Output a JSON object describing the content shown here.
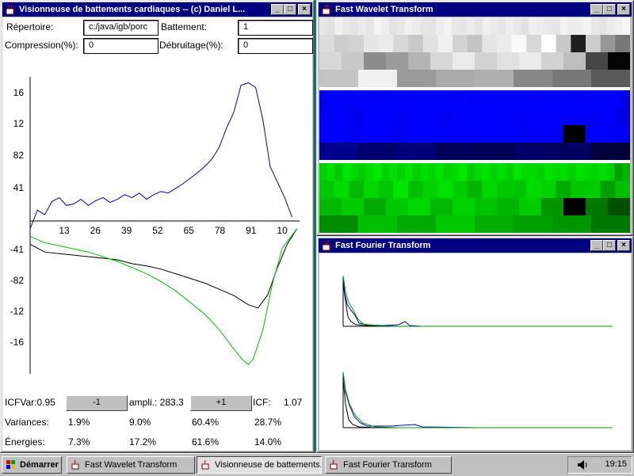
{
  "viewer": {
    "title": "Visionneuse de battements cardiaques -- (c) Daniel L...",
    "repertoire_label": "Répertoire:",
    "repertoire_value": "c:/java/igb/porc",
    "battement_label": "Battement:",
    "battement_value": "1",
    "compression_label": "Compression(%):",
    "compression_value": "0",
    "debruitage_label": "Débruitage(%):",
    "debruitage_value": "0",
    "icf_var_label": "ICFVar:0.95",
    "minus_button": "-1",
    "ampli_label": "ampli.: 283.3",
    "plus_button": "+1",
    "icf_label": "ICF:",
    "icf_value": "1.07",
    "variances_label": "Variances:",
    "variances": [
      "1.9%",
      "9.0%",
      "60.4%",
      "28.7%"
    ],
    "energies_label": "Énergies:",
    "energies": [
      "7.3%",
      "17.2%",
      "61.6%",
      "14.0%"
    ]
  },
  "chart_data": {
    "type": "line",
    "x_ticks": [
      "13",
      "26",
      "39",
      "52",
      "65",
      "78",
      "91",
      "10"
    ],
    "y_ticks": [
      "16",
      "12",
      "82",
      "41",
      "-41",
      "-82",
      "-12",
      "-16"
    ],
    "series": [
      {
        "color": "#0000c0",
        "x": [
          0,
          3,
          6,
          9,
          12,
          15,
          18,
          21,
          24,
          27,
          30,
          33,
          36,
          39,
          42,
          45,
          48,
          51,
          54,
          57,
          60,
          63,
          66,
          69,
          72,
          75,
          78,
          81,
          84,
          87,
          90,
          93,
          96,
          99,
          102,
          105,
          108
        ],
        "y": [
          -10,
          14,
          8,
          25,
          30,
          20,
          22,
          28,
          20,
          26,
          30,
          24,
          28,
          34,
          30,
          36,
          28,
          34,
          38,
          36,
          42,
          48,
          55,
          62,
          70,
          80,
          95,
          120,
          140,
          175,
          178,
          172,
          130,
          70,
          50,
          30,
          5
        ]
      },
      {
        "color": "#000000",
        "x": [
          0,
          6,
          12,
          18,
          24,
          30,
          36,
          42,
          48,
          54,
          60,
          66,
          72,
          78,
          84,
          90,
          94,
          98,
          102,
          106,
          110
        ],
        "y": [
          -30,
          -40,
          -42,
          -44,
          -46,
          -48,
          -50,
          -55,
          -58,
          -62,
          -68,
          -74,
          -80,
          -88,
          -96,
          -108,
          -112,
          -95,
          -60,
          -30,
          -10
        ]
      },
      {
        "color": "#00c000",
        "x": [
          0,
          6,
          12,
          18,
          24,
          30,
          36,
          42,
          48,
          54,
          60,
          66,
          72,
          78,
          84,
          88,
          90,
          92,
          96,
          100,
          104,
          110
        ],
        "y": [
          -20,
          -28,
          -32,
          -36,
          -40,
          -46,
          -52,
          -60,
          -68,
          -78,
          -90,
          -105,
          -120,
          -140,
          -165,
          -180,
          -185,
          -178,
          -140,
          -80,
          -35,
          -10
        ]
      }
    ]
  },
  "wavelet": {
    "title": "Fast Wavelet Transform",
    "gray_rows": [
      [
        230,
        225,
        240,
        232,
        228,
        236,
        230,
        245,
        238,
        226,
        232,
        240,
        236,
        230,
        228,
        238,
        244,
        232,
        230,
        236,
        228,
        240,
        234,
        230,
        238,
        232,
        226,
        240,
        236,
        232,
        230,
        242,
        236,
        238,
        244,
        232,
        228,
        236,
        240,
        246
      ],
      [
        220,
        205,
        210,
        230,
        235,
        215,
        200,
        225,
        240,
        210,
        195,
        230,
        236,
        250,
        215,
        255,
        200,
        30,
        205,
        150,
        120
      ],
      [
        215,
        200,
        140,
        155,
        180,
        215,
        235,
        210,
        225,
        235,
        210,
        190,
        70,
        5
      ],
      [
        195,
        240,
        155,
        170,
        175,
        135,
        120,
        90
      ]
    ],
    "blue_rows": [
      [
        40,
        60,
        70,
        50,
        65,
        58,
        72,
        48,
        62,
        55,
        68,
        52,
        60,
        70,
        58,
        64,
        52,
        72,
        60,
        48,
        66,
        58,
        62,
        54,
        70,
        56,
        60,
        66,
        52,
        72,
        58,
        64,
        60,
        50,
        68,
        56,
        62,
        70,
        60,
        30
      ],
      [
        45,
        70,
        40,
        58,
        65,
        50,
        72,
        62,
        48,
        58,
        70,
        55,
        62,
        45,
        60,
        68,
        55,
        60,
        50,
        75,
        30
      ],
      [
        60,
        50,
        72,
        44,
        56,
        66,
        52,
        60,
        70,
        48,
        52,
        0,
        75,
        45
      ],
      [
        140,
        110,
        120,
        90,
        85,
        100,
        95,
        60
      ]
    ],
    "green_rows": [
      [
        210,
        225,
        200,
        230,
        215,
        205,
        220,
        235,
        210,
        225,
        212,
        230,
        208,
        222,
        215,
        228,
        210,
        220,
        232,
        205,
        218,
        226,
        212,
        224,
        208,
        230,
        216,
        220,
        210,
        228,
        214,
        222,
        206,
        226,
        218,
        212,
        224,
        208,
        160,
        180
      ],
      [
        200,
        220,
        185,
        215,
        200,
        230,
        190,
        210,
        225,
        205,
        180,
        215,
        200,
        195,
        220,
        210,
        170,
        200,
        205,
        160,
        190
      ],
      [
        185,
        205,
        170,
        200,
        215,
        185,
        210,
        195,
        180,
        205,
        150,
        0,
        120,
        80
      ],
      [
        140,
        190,
        170,
        200,
        175,
        160,
        150,
        120
      ]
    ]
  },
  "fft": {
    "title": "Fast Fourier Transform"
  },
  "taskbar": {
    "start_label": "Démarrer",
    "tasks": [
      "Fast Wavelet Transform",
      "Visionneuse de battements...",
      "Fast Fourier Transform"
    ],
    "clock": "19:15"
  }
}
